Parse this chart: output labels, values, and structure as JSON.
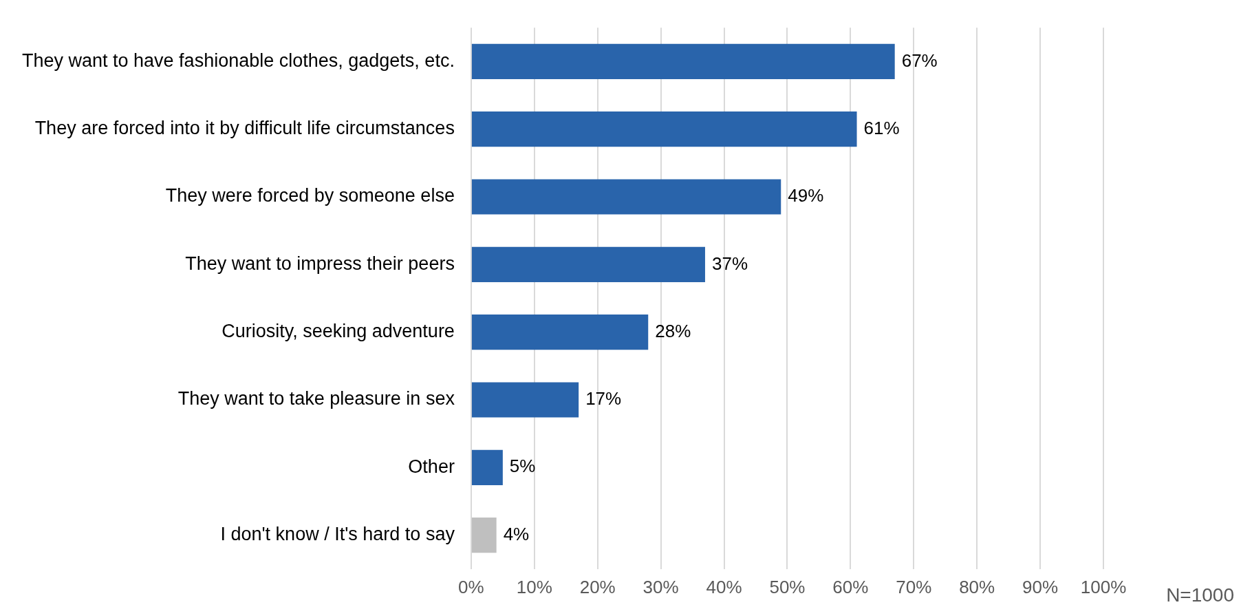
{
  "chart_data": {
    "type": "bar",
    "orientation": "horizontal",
    "categories": [
      "They want to have fashionable clothes, gadgets, etc.",
      "They are forced into it by difficult life circumstances",
      "They were forced by someone else",
      "They want to impress their peers",
      "Curiosity, seeking adventure",
      "They want to take pleasure in sex",
      "Other",
      "I don't know / It's hard to say"
    ],
    "values": [
      67,
      61,
      49,
      37,
      28,
      17,
      5,
      4
    ],
    "colors": [
      "#2964ab",
      "#2964ab",
      "#2964ab",
      "#2964ab",
      "#2964ab",
      "#2964ab",
      "#2964ab",
      "#bfbfbf"
    ],
    "xlim": [
      0,
      100
    ],
    "xticks": [
      {
        "value": 0,
        "label": "0%"
      },
      {
        "value": 10,
        "label": "10%"
      },
      {
        "value": 20,
        "label": "20%"
      },
      {
        "value": 30,
        "label": "30%"
      },
      {
        "value": 40,
        "label": "40%"
      },
      {
        "value": 50,
        "label": "50%"
      },
      {
        "value": 60,
        "label": "60%"
      },
      {
        "value": 70,
        "label": "70%"
      },
      {
        "value": 80,
        "label": "80%"
      },
      {
        "value": 90,
        "label": "90%"
      },
      {
        "value": 100,
        "label": "100%"
      }
    ],
    "value_labels": [
      "67%",
      "61%",
      "49%",
      "37%",
      "28%",
      "17%",
      "5%",
      "4%"
    ],
    "grid": "x",
    "legend": false,
    "annotations": [
      "N=1000"
    ]
  }
}
